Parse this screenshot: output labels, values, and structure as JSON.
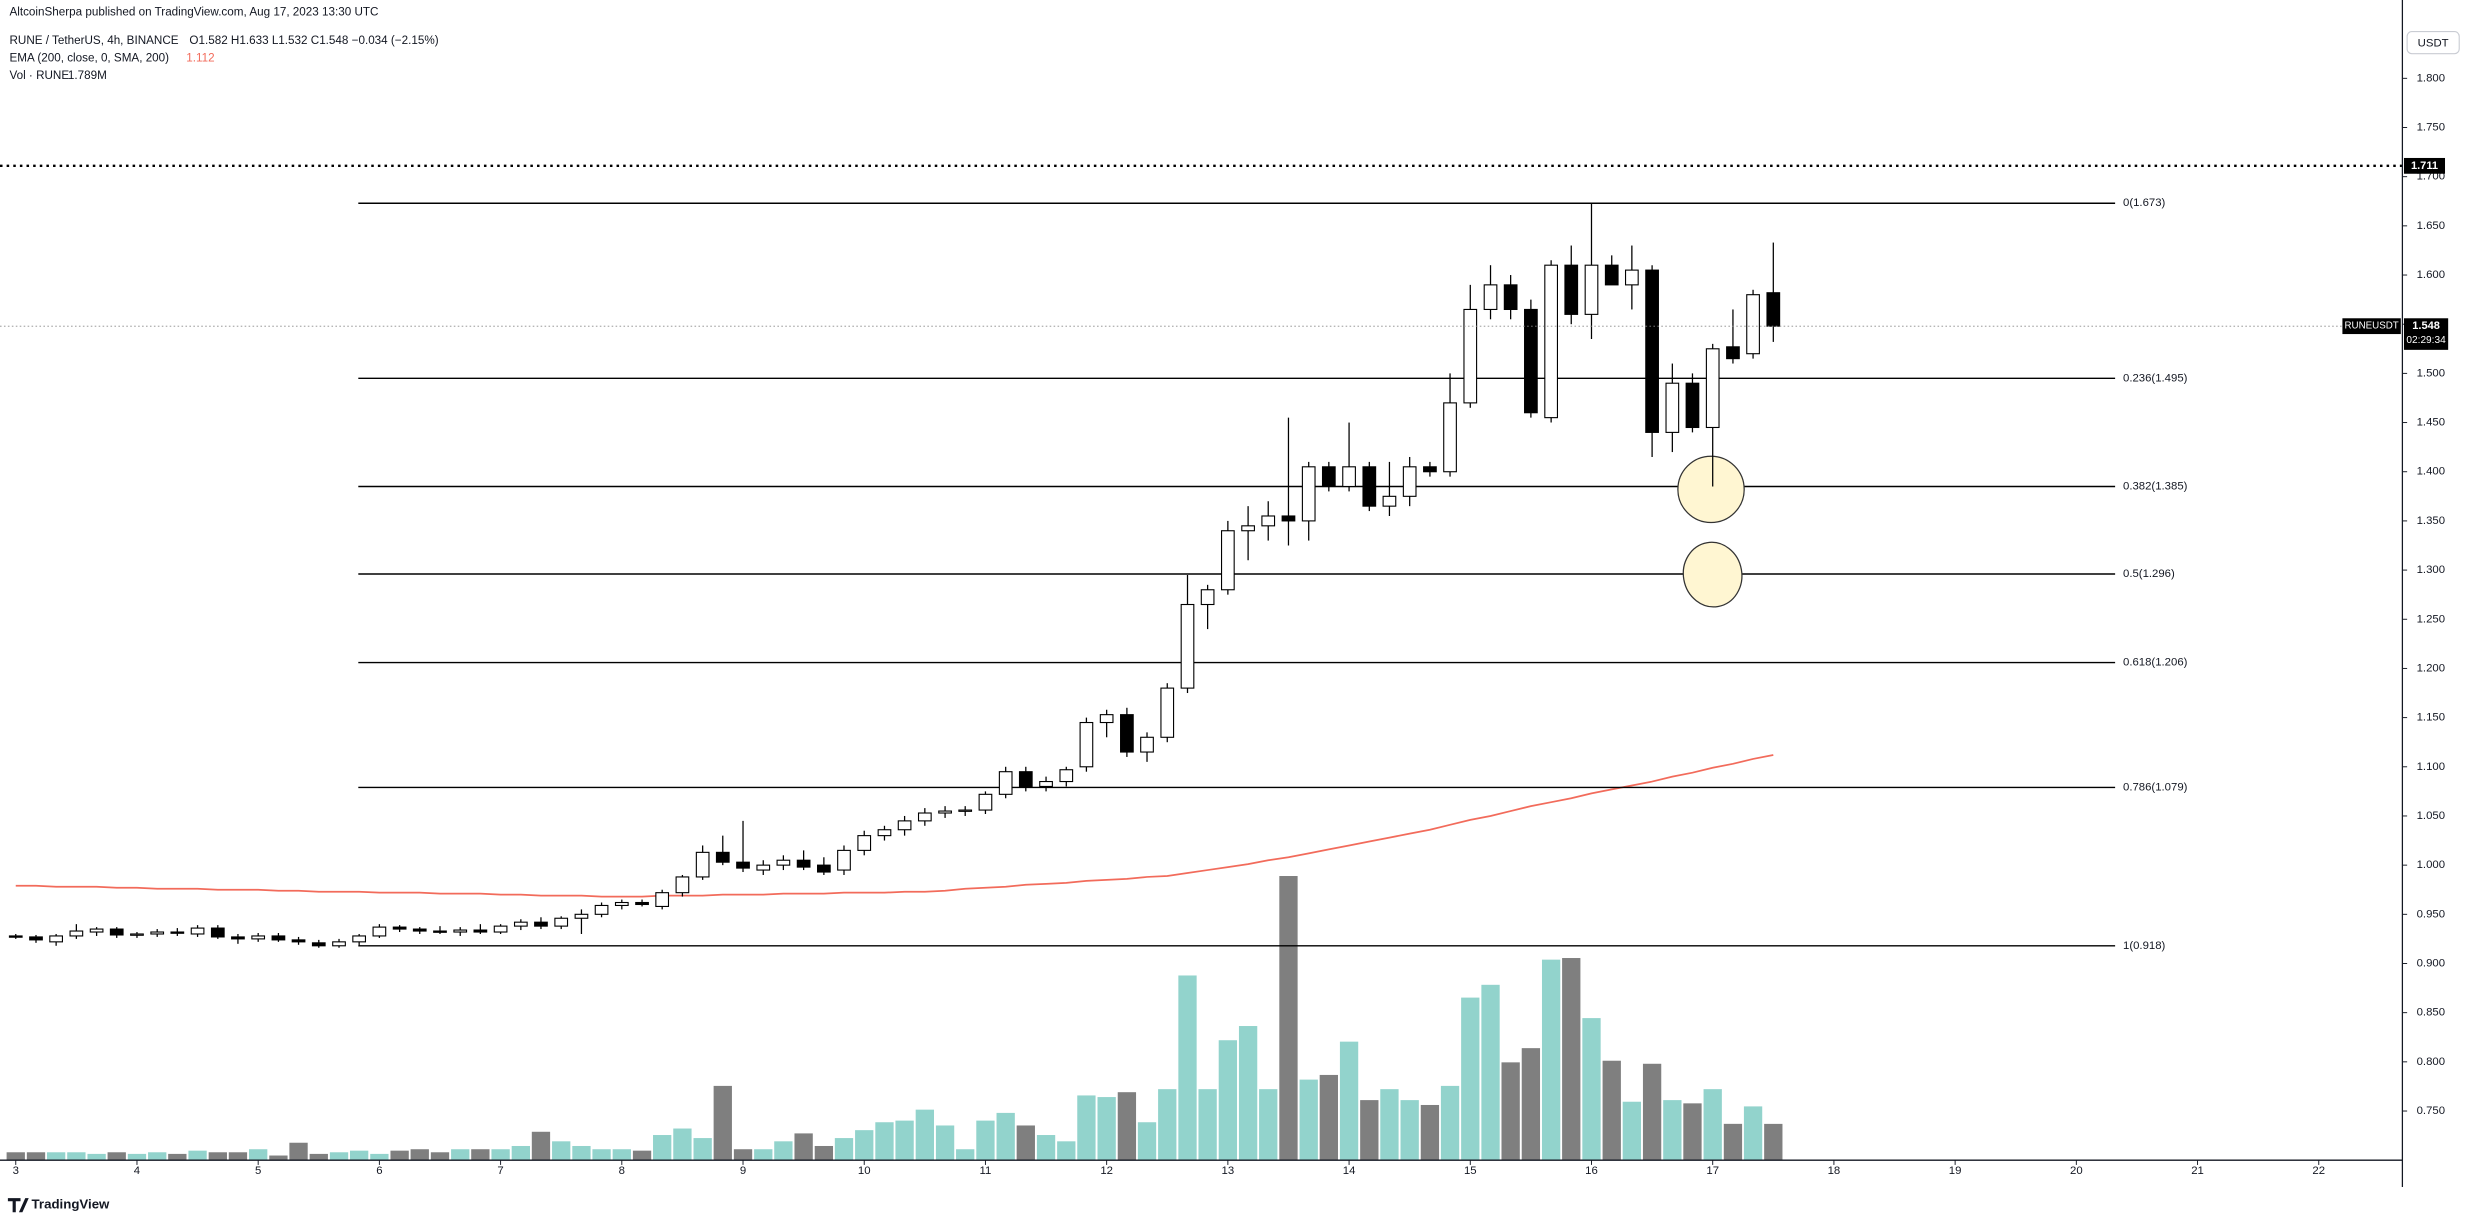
{
  "chart_data": {
    "type": "candlestick",
    "published": "AltcoinSherpa published on TradingView.com, Aug 17, 2023 13:30 UTC",
    "legend": {
      "symbol": "RUNE / TetherUS, 4h, BINANCE",
      "ohlc": "O1.582 H1.633 L1.532 C1.548 −0.034 (−2.15%)",
      "ema_name": "EMA (200, close, 0, SMA, 200)",
      "ema_value": "1.112",
      "vol_name": "Vol · RUNE",
      "vol_value": "1.789M"
    },
    "currency": "USDT",
    "footer": "TradingView",
    "x": [
      3,
      3.167,
      3.333,
      3.5,
      3.667,
      3.833,
      4,
      4.167,
      4.333,
      4.5,
      4.667,
      4.833,
      5,
      5.167,
      5.333,
      5.5,
      5.667,
      5.833,
      6,
      6.167,
      6.333,
      6.5,
      6.667,
      6.833,
      7,
      7.167,
      7.333,
      7.5,
      7.667,
      7.833,
      8,
      8.167,
      8.333,
      8.5,
      8.667,
      8.833,
      9,
      9.167,
      9.333,
      9.5,
      9.667,
      9.833,
      10,
      10.167,
      10.333,
      10.5,
      10.667,
      10.833,
      11,
      11.167,
      11.333,
      11.5,
      11.667,
      11.833,
      12,
      12.167,
      12.333,
      12.5,
      12.667,
      12.833,
      13,
      13.167,
      13.333,
      13.5,
      13.667,
      13.833,
      14,
      14.167,
      14.333,
      14.5,
      14.667,
      14.833,
      15,
      15.167,
      15.333,
      15.5,
      15.667,
      15.833,
      16,
      16.167,
      16.333,
      16.5,
      16.667,
      16.833,
      17,
      17.167,
      17.333,
      17.5
    ],
    "open": [
      0.928,
      0.927,
      0.922,
      0.928,
      0.932,
      0.935,
      0.929,
      0.93,
      0.932,
      0.93,
      0.936,
      0.927,
      0.925,
      0.928,
      0.924,
      0.921,
      0.918,
      0.922,
      0.928,
      0.937,
      0.935,
      0.933,
      0.932,
      0.934,
      0.932,
      0.938,
      0.942,
      0.938,
      0.946,
      0.95,
      0.959,
      0.962,
      0.958,
      0.972,
      0.988,
      1.013,
      1.003,
      0.995,
      1.0,
      1.005,
      1.0,
      0.995,
      1.015,
      1.03,
      1.036,
      1.045,
      1.053,
      1.055,
      1.056,
      1.072,
      1.095,
      1.08,
      1.085,
      1.1,
      1.145,
      1.153,
      1.115,
      1.13,
      1.18,
      1.265,
      1.28,
      1.34,
      1.345,
      1.355,
      1.35,
      1.405,
      1.385,
      1.405,
      1.365,
      1.375,
      1.405,
      1.4,
      1.47,
      1.565,
      1.59,
      1.565,
      1.455,
      1.61,
      1.56,
      1.61,
      1.59,
      1.605,
      1.44,
      1.49,
      1.445,
      1.527,
      1.52,
      1.582
    ],
    "high": [
      0.93,
      0.929,
      0.93,
      0.94,
      0.937,
      0.937,
      0.932,
      0.935,
      0.936,
      0.939,
      0.939,
      0.93,
      0.931,
      0.931,
      0.927,
      0.924,
      0.925,
      0.93,
      0.94,
      0.939,
      0.937,
      0.938,
      0.937,
      0.94,
      0.94,
      0.945,
      0.947,
      0.948,
      0.955,
      0.962,
      0.965,
      0.965,
      0.975,
      0.99,
      1.02,
      1.03,
      1.045,
      1.005,
      1.01,
      1.015,
      1.008,
      1.02,
      1.035,
      1.04,
      1.05,
      1.058,
      1.06,
      1.06,
      1.075,
      1.1,
      1.1,
      1.09,
      1.1,
      1.15,
      1.158,
      1.16,
      1.135,
      1.185,
      1.295,
      1.285,
      1.35,
      1.365,
      1.37,
      1.455,
      1.41,
      1.41,
      1.45,
      1.41,
      1.41,
      1.415,
      1.41,
      1.5,
      1.59,
      1.61,
      1.6,
      1.575,
      1.615,
      1.63,
      1.673,
      1.62,
      1.63,
      1.61,
      1.51,
      1.5,
      1.53,
      1.565,
      1.585,
      1.633
    ],
    "low": [
      0.925,
      0.921,
      0.918,
      0.925,
      0.928,
      0.926,
      0.926,
      0.927,
      0.928,
      0.927,
      0.925,
      0.92,
      0.922,
      0.922,
      0.919,
      0.916,
      0.916,
      0.918,
      0.926,
      0.932,
      0.93,
      0.93,
      0.928,
      0.93,
      0.93,
      0.934,
      0.935,
      0.935,
      0.93,
      0.947,
      0.955,
      0.958,
      0.955,
      0.968,
      0.985,
      1.0,
      0.993,
      0.99,
      0.995,
      0.995,
      0.99,
      0.99,
      1.01,
      1.025,
      1.03,
      1.04,
      1.048,
      1.05,
      1.052,
      1.068,
      1.075,
      1.075,
      1.08,
      1.095,
      1.13,
      1.11,
      1.105,
      1.125,
      1.175,
      1.24,
      1.275,
      1.31,
      1.33,
      1.325,
      1.33,
      1.38,
      1.38,
      1.36,
      1.355,
      1.365,
      1.395,
      1.395,
      1.465,
      1.555,
      1.555,
      1.455,
      1.45,
      1.55,
      1.535,
      1.59,
      1.565,
      1.415,
      1.42,
      1.44,
      1.385,
      1.51,
      1.515,
      1.532
    ],
    "close": [
      0.927,
      0.924,
      0.928,
      0.933,
      0.935,
      0.929,
      0.93,
      0.932,
      0.931,
      0.936,
      0.927,
      0.925,
      0.928,
      0.924,
      0.922,
      0.918,
      0.922,
      0.928,
      0.937,
      0.935,
      0.933,
      0.932,
      0.934,
      0.932,
      0.938,
      0.942,
      0.938,
      0.946,
      0.95,
      0.959,
      0.962,
      0.96,
      0.972,
      0.988,
      1.013,
      1.003,
      0.997,
      1.0,
      1.005,
      0.998,
      0.993,
      1.015,
      1.03,
      1.036,
      1.045,
      1.053,
      1.055,
      1.056,
      1.072,
      1.095,
      1.08,
      1.085,
      1.097,
      1.145,
      1.153,
      1.115,
      1.13,
      1.18,
      1.265,
      1.28,
      1.34,
      1.345,
      1.355,
      1.35,
      1.405,
      1.385,
      1.405,
      1.365,
      1.375,
      1.405,
      1.4,
      1.47,
      1.565,
      1.59,
      1.565,
      1.46,
      1.61,
      1.56,
      1.61,
      1.59,
      1.605,
      1.44,
      1.49,
      1.445,
      1.525,
      1.515,
      1.58,
      1.548
    ],
    "volume": [
      0.39,
      0.39,
      0.39,
      0.39,
      0.31,
      0.39,
      0.31,
      0.39,
      0.31,
      0.47,
      0.39,
      0.39,
      0.54,
      0.23,
      0.86,
      0.31,
      0.39,
      0.47,
      0.31,
      0.47,
      0.54,
      0.39,
      0.54,
      0.54,
      0.54,
      0.7,
      1.4,
      0.93,
      0.7,
      0.54,
      0.54,
      0.47,
      1.24,
      1.56,
      1.09,
      3.66,
      0.54,
      0.54,
      0.93,
      1.32,
      0.7,
      1.09,
      1.48,
      1.87,
      1.95,
      2.49,
      1.71,
      0.54,
      1.95,
      2.33,
      1.71,
      1.24,
      0.93,
      3.19,
      3.11,
      3.35,
      1.87,
      3.5,
      9.1,
      3.5,
      5.91,
      6.61,
      3.5,
      14.0,
      3.97,
      4.2,
      5.84,
      2.96,
      3.5,
      2.96,
      2.72,
      3.66,
      8.01,
      8.64,
      4.82,
      5.52,
      9.88,
      9.96,
      7.0,
      4.9,
      2.88,
      4.75,
      2.96,
      2.8,
      3.5,
      1.79,
      2.65,
      1.789
    ],
    "ema": [
      0.979,
      0.979,
      0.978,
      0.978,
      0.978,
      0.977,
      0.977,
      0.976,
      0.976,
      0.976,
      0.975,
      0.975,
      0.975,
      0.974,
      0.974,
      0.973,
      0.973,
      0.973,
      0.972,
      0.972,
      0.972,
      0.971,
      0.971,
      0.971,
      0.97,
      0.97,
      0.969,
      0.969,
      0.969,
      0.968,
      0.968,
      0.968,
      0.969,
      0.969,
      0.969,
      0.97,
      0.97,
      0.97,
      0.971,
      0.971,
      0.971,
      0.972,
      0.972,
      0.972,
      0.973,
      0.973,
      0.974,
      0.976,
      0.977,
      0.978,
      0.98,
      0.981,
      0.982,
      0.984,
      0.985,
      0.986,
      0.988,
      0.989,
      0.992,
      0.995,
      0.998,
      1.001,
      1.005,
      1.008,
      1.012,
      1.016,
      1.02,
      1.024,
      1.028,
      1.032,
      1.036,
      1.041,
      1.046,
      1.05,
      1.055,
      1.06,
      1.064,
      1.068,
      1.073,
      1.077,
      1.081,
      1.085,
      1.09,
      1.094,
      1.099,
      1.103,
      1.108,
      1.112
    ],
    "up_color": "#ffffff",
    "down_color": "#000000",
    "ema_color": "#f26b5b",
    "volume_up_color": "#92d3cc",
    "volume_down_color": "#7f7f7f",
    "fib_color": "#000000",
    "fib_levels": [
      {
        "value": 1.673,
        "label": "0(1.673)"
      },
      {
        "value": 1.495,
        "label": "0.236(1.495)"
      },
      {
        "value": 1.385,
        "label": "0.382(1.385)"
      },
      {
        "value": 1.296,
        "label": "0.5(1.296)"
      },
      {
        "value": 1.206,
        "label": "0.618(1.206)"
      },
      {
        "value": 1.079,
        "label": "0.786(1.079)"
      },
      {
        "value": 0.918,
        "label": "1(0.918)"
      }
    ],
    "hline": 1.711,
    "last_price": 1.548,
    "symbol": "RUNEUSDT",
    "countdown": "02:29:34",
    "xlim": [
      2.87,
      22.69
    ],
    "xticks": [
      3,
      4,
      5,
      6,
      7,
      8,
      9,
      10,
      11,
      12,
      13,
      14,
      15,
      16,
      17,
      18,
      19,
      20,
      21,
      22
    ],
    "ylim": [
      0.7,
      1.8796
    ],
    "yticks": [
      {
        "value": 1.8,
        "label": "1.800"
      },
      {
        "value": 1.75,
        "label": "1.750"
      },
      {
        "value": 1.7,
        "label": "1.700"
      },
      {
        "value": 1.65,
        "label": "1.650"
      },
      {
        "value": 1.6,
        "label": "1.600"
      },
      {
        "value": 1.55,
        "label": "1.550"
      },
      {
        "value": 1.5,
        "label": "1.500"
      },
      {
        "value": 1.45,
        "label": "1.450"
      },
      {
        "value": 1.4,
        "label": "1.400"
      },
      {
        "value": 1.35,
        "label": "1.350"
      },
      {
        "value": 1.3,
        "label": "1.300"
      },
      {
        "value": 1.25,
        "label": "1.250"
      },
      {
        "value": 1.2,
        "label": "1.200"
      },
      {
        "value": 1.15,
        "label": "1.150"
      },
      {
        "value": 1.1,
        "label": "1.100"
      },
      {
        "value": 1.05,
        "label": "1.050"
      },
      {
        "value": 1.0,
        "label": "1.000"
      },
      {
        "value": 0.95,
        "label": "0.950"
      },
      {
        "value": 0.9,
        "label": "0.900"
      },
      {
        "value": 0.85,
        "label": "0.850"
      },
      {
        "value": 0.8,
        "label": "0.800"
      },
      {
        "value": 0.75,
        "label": "0.750"
      }
    ],
    "grid": false
  }
}
